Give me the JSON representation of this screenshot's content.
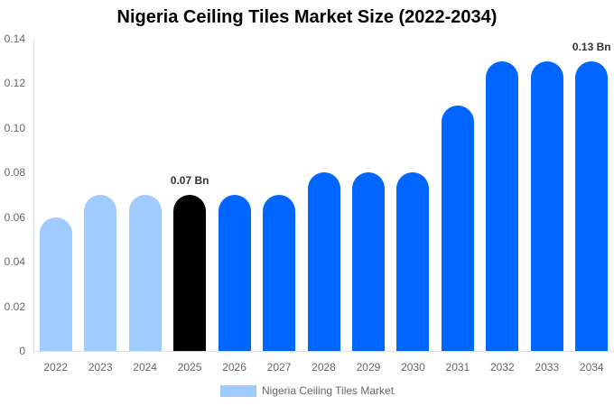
{
  "chart_data": {
    "type": "bar",
    "title": "Nigeria Ceiling Tiles Market Size (2022-2034)",
    "xlabel": "",
    "ylabel": "",
    "ylim": [
      0,
      0.14
    ],
    "yticks": [
      "0",
      "0.02",
      "0.04",
      "0.06",
      "0.08",
      "0.10",
      "0.12",
      "0.14"
    ],
    "grid": false,
    "legend_position": "bottom",
    "categories": [
      "2022",
      "2023",
      "2024",
      "2025",
      "2026",
      "2027",
      "2028",
      "2029",
      "2030",
      "2031",
      "2032",
      "2033",
      "2034"
    ],
    "series": [
      {
        "name": "Nigeria Ceiling Tiles Market",
        "values": [
          0.06,
          0.07,
          0.07,
          0.07,
          0.07,
          0.07,
          0.08,
          0.08,
          0.08,
          0.11,
          0.13,
          0.13,
          0.13
        ]
      }
    ],
    "bar_colors": [
      "#a0cbff",
      "#a0cbff",
      "#a0cbff",
      "#000000",
      "#0066ff",
      "#0066ff",
      "#0066ff",
      "#0066ff",
      "#0066ff",
      "#0066ff",
      "#0066ff",
      "#0066ff",
      "#0066ff"
    ],
    "annotations": [
      {
        "category": "2025",
        "text": "0.07 Bn"
      },
      {
        "category": "2034",
        "text": "0.13 Bn"
      }
    ]
  },
  "legend": {
    "label": "Nigeria Ceiling Tiles Market",
    "color": "#a0cbff"
  }
}
